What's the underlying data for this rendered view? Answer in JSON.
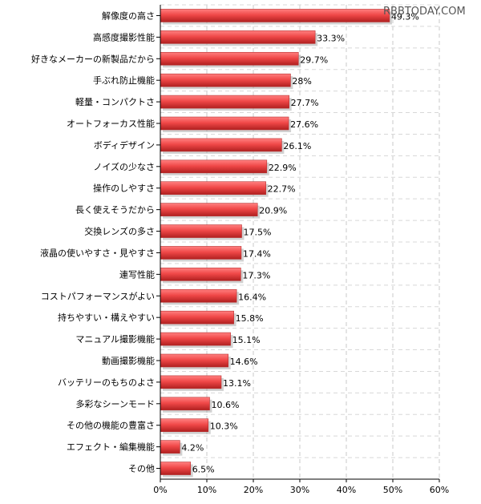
{
  "watermark": "RBBTODAY.COM",
  "chart_data": {
    "type": "bar",
    "orientation": "horizontal",
    "categories": [
      "解像度の高さ",
      "高感度撮影性能",
      "好きなメーカーの新製品だから",
      "手ぶれ防止機能",
      "軽量・コンパクトさ",
      "オートフォーカス性能",
      "ボディデザイン",
      "ノイズの少なさ",
      "操作のしやすさ",
      "長く使えそうだから",
      "交換レンズの多さ",
      "液晶の使いやすさ・見やすさ",
      "連写性能",
      "コストパフォーマンスがよい",
      "持ちやすい・構えやすい",
      "マニュアル撮影機能",
      "動画撮影機能",
      "バッテリーのもちのよさ",
      "多彩なシーンモード",
      "その他の機能の豊富さ",
      "エフェクト・編集機能",
      "その他"
    ],
    "values": [
      49.3,
      33.3,
      29.7,
      28,
      27.7,
      27.6,
      26.1,
      22.9,
      22.7,
      20.9,
      17.5,
      17.4,
      17.3,
      16.4,
      15.8,
      15.1,
      14.6,
      13.1,
      10.6,
      10.3,
      4.2,
      6.5
    ],
    "value_labels": [
      "49.3%",
      "33.3%",
      "29.7%",
      "28%",
      "27.7%",
      "27.6%",
      "26.1%",
      "22.9%",
      "22.7%",
      "20.9%",
      "17.5%",
      "17.4%",
      "17.3%",
      "16.4%",
      "15.8%",
      "15.1%",
      "14.6%",
      "13.1%",
      "10.6%",
      "10.3%",
      "4.2%",
      "6.5%"
    ],
    "xticks": [
      0,
      10,
      20,
      30,
      40,
      50,
      60
    ],
    "xtick_labels": [
      "0%",
      "10%",
      "20%",
      "30%",
      "40%",
      "50%",
      "60%"
    ],
    "xlim": [
      0,
      60
    ],
    "grid": true,
    "legend": "none",
    "bar_color": "#f04848",
    "bar_highlight": "#ff8080",
    "bar_shadow": "#b02020",
    "title": "",
    "xlabel": "",
    "ylabel": ""
  }
}
